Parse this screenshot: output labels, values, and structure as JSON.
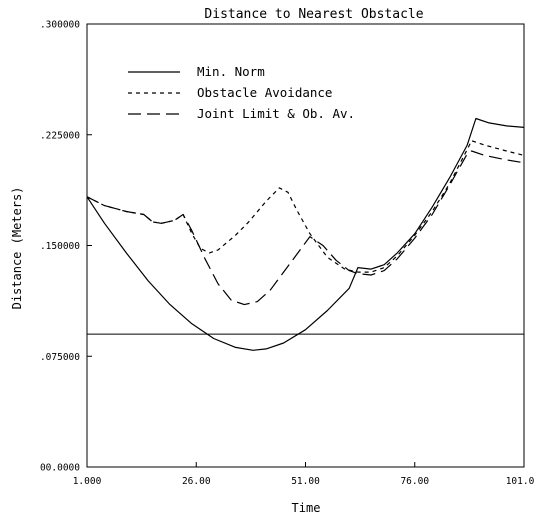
{
  "chart_data": {
    "type": "line",
    "title": "Distance to Nearest Obstacle",
    "xlabel": "Time",
    "ylabel": "Distance (Meters)",
    "xlim": [
      1,
      101
    ],
    "ylim": [
      0,
      0.3
    ],
    "x_ticks": [
      1,
      26,
      51,
      76,
      101
    ],
    "x_tick_labels": [
      "1.000",
      "26.00",
      "51.00",
      "76.00",
      "101.0"
    ],
    "y_ticks": [
      0,
      0.075,
      0.15,
      0.225,
      0.3
    ],
    "y_tick_labels": [
      "00.0000",
      ".075000",
      ".150000",
      ".225000",
      ".300000"
    ],
    "legend": "upper-left",
    "reference_line": {
      "y": 0.09
    },
    "series": [
      {
        "name": "Min. Norm",
        "style": "solid",
        "points": [
          [
            1,
            0.183
          ],
          [
            5,
            0.165
          ],
          [
            10,
            0.145
          ],
          [
            15,
            0.126
          ],
          [
            20,
            0.11
          ],
          [
            25,
            0.097
          ],
          [
            30,
            0.087
          ],
          [
            35,
            0.081
          ],
          [
            39,
            0.079
          ],
          [
            42,
            0.08
          ],
          [
            46,
            0.084
          ],
          [
            51,
            0.093
          ],
          [
            56,
            0.106
          ],
          [
            61,
            0.121
          ],
          [
            63,
            0.135
          ],
          [
            66,
            0.134
          ],
          [
            69,
            0.137
          ],
          [
            72,
            0.145
          ],
          [
            76,
            0.158
          ],
          [
            80,
            0.176
          ],
          [
            84,
            0.196
          ],
          [
            88,
            0.218
          ],
          [
            90,
            0.236
          ],
          [
            93,
            0.233
          ],
          [
            97,
            0.231
          ],
          [
            101,
            0.23
          ]
        ]
      },
      {
        "name": "Obstacle Avoidance",
        "style": "short-dash",
        "points": [
          [
            1,
            0.183
          ],
          [
            5,
            0.177
          ],
          [
            10,
            0.173
          ],
          [
            14,
            0.171
          ],
          [
            16,
            0.166
          ],
          [
            18,
            0.165
          ],
          [
            21,
            0.167
          ],
          [
            23,
            0.171
          ],
          [
            25,
            0.158
          ],
          [
            27,
            0.148
          ],
          [
            29,
            0.145
          ],
          [
            31,
            0.147
          ],
          [
            35,
            0.157
          ],
          [
            38,
            0.166
          ],
          [
            42,
            0.18
          ],
          [
            45,
            0.189
          ],
          [
            47,
            0.186
          ],
          [
            49,
            0.174
          ],
          [
            52,
            0.158
          ],
          [
            56,
            0.142
          ],
          [
            60,
            0.134
          ],
          [
            63,
            0.132
          ],
          [
            66,
            0.132
          ],
          [
            69,
            0.135
          ],
          [
            72,
            0.143
          ],
          [
            76,
            0.157
          ],
          [
            80,
            0.173
          ],
          [
            84,
            0.192
          ],
          [
            88,
            0.215
          ],
          [
            89,
            0.221
          ],
          [
            92,
            0.218
          ],
          [
            97,
            0.214
          ],
          [
            101,
            0.211
          ]
        ]
      },
      {
        "name": "Joint Limit & Ob. Av.",
        "style": "long-dash",
        "points": [
          [
            1,
            0.183
          ],
          [
            5,
            0.177
          ],
          [
            10,
            0.173
          ],
          [
            14,
            0.171
          ],
          [
            16,
            0.166
          ],
          [
            18,
            0.165
          ],
          [
            21,
            0.167
          ],
          [
            23,
            0.171
          ],
          [
            25,
            0.16
          ],
          [
            28,
            0.141
          ],
          [
            31,
            0.124
          ],
          [
            34,
            0.113
          ],
          [
            37,
            0.11
          ],
          [
            40,
            0.112
          ],
          [
            43,
            0.12
          ],
          [
            46,
            0.132
          ],
          [
            49,
            0.144
          ],
          [
            52,
            0.156
          ],
          [
            55,
            0.15
          ],
          [
            58,
            0.14
          ],
          [
            61,
            0.133
          ],
          [
            63,
            0.131
          ],
          [
            66,
            0.13
          ],
          [
            69,
            0.133
          ],
          [
            72,
            0.141
          ],
          [
            76,
            0.155
          ],
          [
            80,
            0.171
          ],
          [
            84,
            0.191
          ],
          [
            88,
            0.212
          ],
          [
            89,
            0.214
          ],
          [
            92,
            0.211
          ],
          [
            97,
            0.208
          ],
          [
            101,
            0.206
          ]
        ]
      }
    ]
  }
}
